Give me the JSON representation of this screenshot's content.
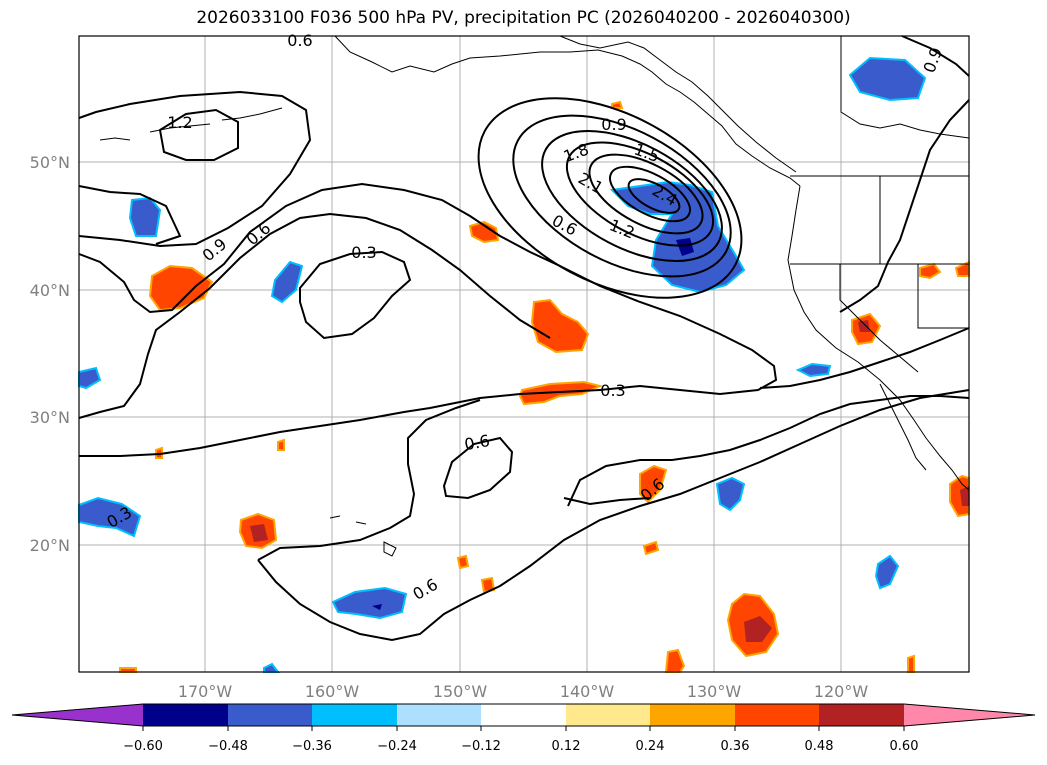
{
  "title": "2026033100 F036 500 hPa PV, precipitation PC (2026040200 - 2026040300)",
  "map": {
    "lon_labels": [
      "170°W",
      "160°W",
      "150°W",
      "140°W",
      "130°W",
      "120°W"
    ],
    "lat_labels": [
      "50°N",
      "40°N",
      "30°N",
      "20°N"
    ],
    "contour_labels": [
      "0.6",
      "1.2",
      "0.9",
      "0.6",
      "0.3",
      "0.9",
      "1.5",
      "1.8",
      "2.1",
      "2.4",
      "1.2",
      "0.6",
      "0.3",
      "0.6",
      "0.6",
      "0.3",
      "0.6",
      "0.9"
    ]
  },
  "colorbar": {
    "ticks": [
      "−0.60",
      "−0.48",
      "−0.36",
      "−0.24",
      "−0.12",
      "0.12",
      "0.24",
      "0.36",
      "0.48",
      "0.60"
    ],
    "colors": [
      "#9932CC",
      "#00008B",
      "#3A5BCC",
      "#00BFFF",
      "#ADDFFF",
      "#FFFFFF",
      "#FFE98C",
      "#FFA500",
      "#FF4500",
      "#B22222",
      "#FF88AA"
    ]
  }
}
